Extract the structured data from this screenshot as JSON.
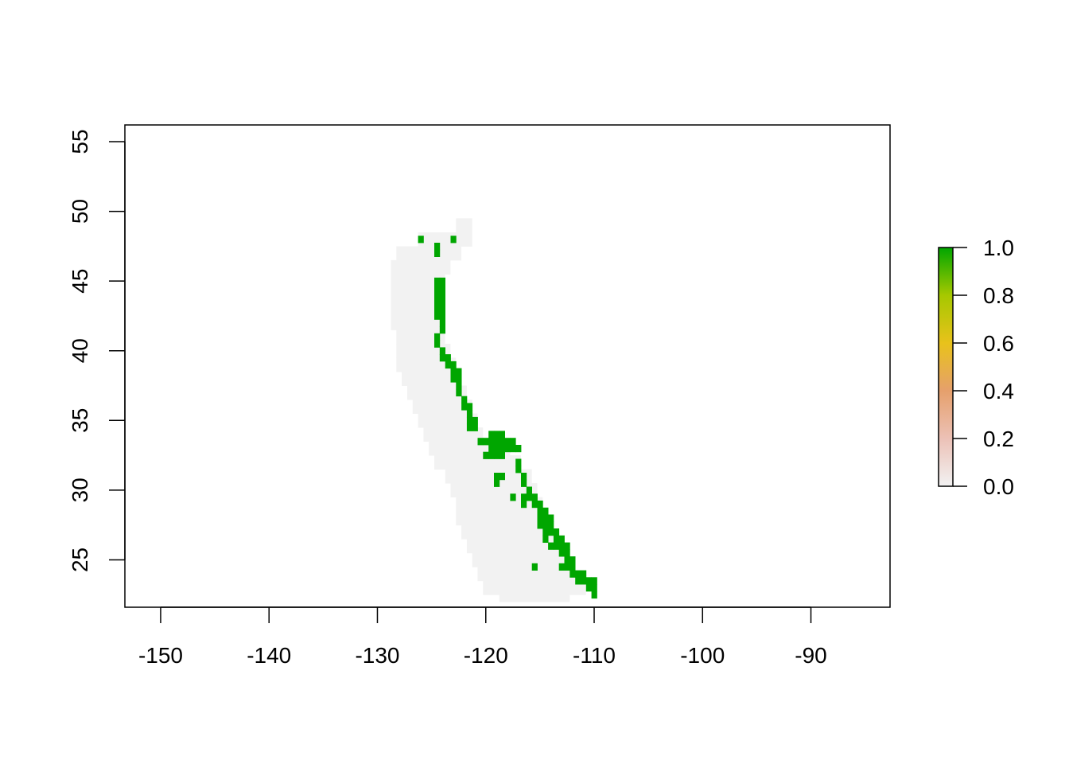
{
  "chart_data": {
    "type": "heatmap",
    "title": "",
    "xlabel": "",
    "ylabel": "",
    "xlim": [
      -153.3,
      -82.7
    ],
    "ylim": [
      21.6,
      56.2
    ],
    "x_ticks": [
      -150,
      -140,
      -130,
      -120,
      -110,
      -100,
      -90
    ],
    "y_ticks": [
      25,
      30,
      35,
      40,
      45,
      50,
      55
    ],
    "x_tick_labels": [
      "-150",
      "-140",
      "-130",
      "-120",
      "-110",
      "-100",
      "-90"
    ],
    "y_tick_labels": [
      "25",
      "30",
      "35",
      "40",
      "45",
      "50",
      "55"
    ],
    "cell_size_deg": 0.5,
    "legend": {
      "placement": "right",
      "range": [
        0,
        1
      ],
      "ticks": [
        "0.0",
        "0.2",
        "0.4",
        "0.6",
        "0.8",
        "1.0"
      ],
      "colors": [
        "#f2f2f2",
        "#ecc1b6",
        "#e6a06c",
        "#e8c21b",
        "#a6c800",
        "#00a600"
      ]
    },
    "value_colors": {
      "0": "#f2f2f2",
      "1": "#00a600"
    },
    "zero_region": [
      {
        "lat": 49.0,
        "lon_min": -122.5,
        "lon_max": -121.5
      },
      {
        "lat": 48.0,
        "lon_min": -126.0,
        "lon_max": -121.5
      },
      {
        "lat": 47.0,
        "lon_min": -128.0,
        "lon_max": -122.5
      },
      {
        "lat": 46.0,
        "lon_min": -128.5,
        "lon_max": -123.5
      },
      {
        "lat": 45.0,
        "lon_min": -128.5,
        "lon_max": -124.0
      },
      {
        "lat": 44.0,
        "lon_min": -128.5,
        "lon_max": -124.0
      },
      {
        "lat": 43.0,
        "lon_min": -128.5,
        "lon_max": -124.0
      },
      {
        "lat": 42.0,
        "lon_min": -128.5,
        "lon_max": -124.0
      },
      {
        "lat": 41.0,
        "lon_min": -128.0,
        "lon_max": -124.0
      },
      {
        "lat": 40.0,
        "lon_min": -128.0,
        "lon_max": -123.5
      },
      {
        "lat": 39.0,
        "lon_min": -128.0,
        "lon_max": -123.0
      },
      {
        "lat": 38.0,
        "lon_min": -127.5,
        "lon_max": -122.5
      },
      {
        "lat": 37.0,
        "lon_min": -127.0,
        "lon_max": -122.0
      },
      {
        "lat": 36.0,
        "lon_min": -126.5,
        "lon_max": -121.5
      },
      {
        "lat": 35.0,
        "lon_min": -126.0,
        "lon_max": -121.0
      },
      {
        "lat": 34.0,
        "lon_min": -125.5,
        "lon_max": -120.5
      },
      {
        "lat": 33.0,
        "lon_min": -125.0,
        "lon_max": -118.0
      },
      {
        "lat": 32.0,
        "lon_min": -124.5,
        "lon_max": -117.0
      },
      {
        "lat": 31.0,
        "lon_min": -123.5,
        "lon_max": -116.0
      },
      {
        "lat": 30.0,
        "lon_min": -123.0,
        "lon_max": -115.5
      },
      {
        "lat": 29.0,
        "lon_min": -122.5,
        "lon_max": -115.0
      },
      {
        "lat": 28.0,
        "lon_min": -122.5,
        "lon_max": -114.5
      },
      {
        "lat": 27.0,
        "lon_min": -122.0,
        "lon_max": -114.0
      },
      {
        "lat": 26.0,
        "lon_min": -121.5,
        "lon_max": -113.5
      },
      {
        "lat": 25.0,
        "lon_min": -121.0,
        "lon_max": -113.0
      },
      {
        "lat": 24.0,
        "lon_min": -120.5,
        "lon_max": -112.0
      },
      {
        "lat": 23.0,
        "lon_min": -120.0,
        "lon_max": -111.0
      },
      {
        "lat": 22.5,
        "lon_min": -118.5,
        "lon_max": -112.5
      }
    ],
    "one_cells": [
      [
        -126.0,
        48.0
      ],
      [
        -124.5,
        47.5
      ],
      [
        -124.5,
        47.0
      ],
      [
        -123.0,
        48.0
      ],
      [
        -124.5,
        45.0
      ],
      [
        -124.5,
        44.5
      ],
      [
        -124.5,
        44.0
      ],
      [
        -124.5,
        43.5
      ],
      [
        -124.5,
        43.0
      ],
      [
        -124.5,
        42.5
      ],
      [
        -124.0,
        45.0
      ],
      [
        -124.0,
        44.5
      ],
      [
        -124.0,
        44.0
      ],
      [
        -124.0,
        43.5
      ],
      [
        -124.0,
        43.0
      ],
      [
        -124.0,
        42.5
      ],
      [
        -124.0,
        42.0
      ],
      [
        -124.0,
        41.5
      ],
      [
        -124.5,
        41.0
      ],
      [
        -124.5,
        40.5
      ],
      [
        -124.0,
        40.0
      ],
      [
        -124.0,
        39.5
      ],
      [
        -123.5,
        39.5
      ],
      [
        -123.5,
        39.0
      ],
      [
        -123.0,
        39.0
      ],
      [
        -123.0,
        38.5
      ],
      [
        -123.0,
        38.0
      ],
      [
        -122.5,
        38.5
      ],
      [
        -122.5,
        38.0
      ],
      [
        -122.5,
        37.5
      ],
      [
        -122.5,
        37.0
      ],
      [
        -122.0,
        36.5
      ],
      [
        -122.0,
        36.0
      ],
      [
        -121.5,
        36.0
      ],
      [
        -121.5,
        35.5
      ],
      [
        -121.0,
        35.0
      ],
      [
        -121.5,
        35.0
      ],
      [
        -121.5,
        34.5
      ],
      [
        -121.0,
        34.5
      ],
      [
        -120.5,
        33.5
      ],
      [
        -120.0,
        33.5
      ],
      [
        -119.5,
        33.5
      ],
      [
        -119.5,
        34.0
      ],
      [
        -119.0,
        34.0
      ],
      [
        -118.5,
        34.0
      ],
      [
        -119.5,
        33.0
      ],
      [
        -119.0,
        33.5
      ],
      [
        -119.0,
        33.0
      ],
      [
        -119.0,
        32.5
      ],
      [
        -118.5,
        33.5
      ],
      [
        -118.5,
        33.0
      ],
      [
        -118.5,
        32.5
      ],
      [
        -118.0,
        33.5
      ],
      [
        -118.0,
        33.0
      ],
      [
        -117.5,
        33.5
      ],
      [
        -117.5,
        33.0
      ],
      [
        -117.0,
        33.0
      ],
      [
        -119.5,
        32.5
      ],
      [
        -120.0,
        32.5
      ],
      [
        -117.0,
        32.0
      ],
      [
        -117.0,
        31.5
      ],
      [
        -116.5,
        31.0
      ],
      [
        -116.5,
        30.5
      ],
      [
        -116.0,
        30.0
      ],
      [
        -116.0,
        29.5
      ],
      [
        -115.5,
        29.5
      ],
      [
        -115.5,
        29.0
      ],
      [
        -115.0,
        29.0
      ],
      [
        -115.0,
        28.5
      ],
      [
        -115.0,
        28.0
      ],
      [
        -114.5,
        28.5
      ],
      [
        -114.5,
        28.0
      ],
      [
        -114.5,
        27.5
      ],
      [
        -114.0,
        28.0
      ],
      [
        -114.0,
        27.5
      ],
      [
        -114.0,
        27.0
      ],
      [
        -113.5,
        27.0
      ],
      [
        -113.5,
        26.5
      ],
      [
        -113.5,
        26.0
      ],
      [
        -113.0,
        26.5
      ],
      [
        -113.0,
        26.0
      ],
      [
        -113.0,
        25.5
      ],
      [
        -112.5,
        26.0
      ],
      [
        -112.5,
        25.5
      ],
      [
        -112.5,
        25.0
      ],
      [
        -112.5,
        24.5
      ],
      [
        -112.0,
        25.0
      ],
      [
        -112.0,
        24.5
      ],
      [
        -112.0,
        24.0
      ],
      [
        -111.5,
        24.0
      ],
      [
        -111.5,
        23.5
      ],
      [
        -111.0,
        24.0
      ],
      [
        -111.0,
        23.5
      ],
      [
        -110.5,
        23.5
      ],
      [
        -110.5,
        23.0
      ],
      [
        -110.0,
        23.5
      ],
      [
        -110.0,
        23.0
      ],
      [
        -110.0,
        22.5
      ],
      [
        -116.5,
        29.0
      ],
      [
        -119.0,
        31.0
      ],
      [
        -118.5,
        31.0
      ],
      [
        -116.5,
        29.5
      ],
      [
        -119.0,
        30.5
      ],
      [
        -117.5,
        29.5
      ],
      [
        -115.5,
        24.5
      ],
      [
        -114.5,
        27.0
      ],
      [
        -114.5,
        26.5
      ],
      [
        -115.0,
        27.5
      ],
      [
        -113.0,
        24.5
      ],
      [
        -114.0,
        26.0
      ]
    ]
  }
}
